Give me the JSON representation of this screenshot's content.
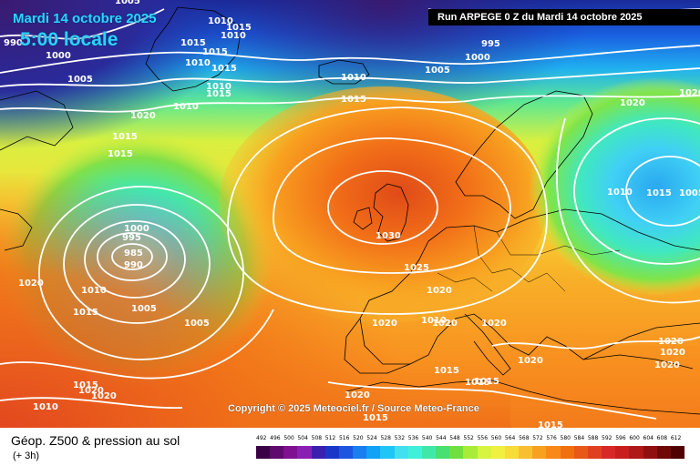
{
  "header": {
    "date": "Mardi 14 octobre 2025",
    "time": "5:00 locale",
    "run": "Run ARPEGE 0 Z du Mardi 14 octobre 2025"
  },
  "copyright": "Copyright © 2025 Meteociel.fr / Source Meteo-France",
  "legend": {
    "title": "Géop. Z500 & pression au sol",
    "subtitle": "(+ 3h)",
    "ticks": [
      "492",
      "496",
      "500",
      "504",
      "508",
      "512",
      "516",
      "520",
      "524",
      "528",
      "532",
      "536",
      "540",
      "544",
      "548",
      "552",
      "556",
      "560",
      "564",
      "568",
      "572",
      "576",
      "580",
      "584",
      "588",
      "592",
      "596",
      "600",
      "604",
      "608",
      "612"
    ],
    "colors": [
      "#3a0045",
      "#5e0a6e",
      "#80108f",
      "#8a1fb3",
      "#3a1fb0",
      "#1a36c8",
      "#1e55e0",
      "#1a7df0",
      "#10a2f5",
      "#1fc6f5",
      "#40e0f0",
      "#40f0d8",
      "#40e8a8",
      "#48e070",
      "#70e040",
      "#a8ec38",
      "#d8f440",
      "#f0f040",
      "#f8dc38",
      "#f8c030",
      "#f8a020",
      "#f88818",
      "#f07010",
      "#e85818",
      "#e04020",
      "#d82828",
      "#c81e1e",
      "#b01818",
      "#901010",
      "#700808",
      "#500000"
    ]
  },
  "isobars": [
    {
      "label": "1005",
      "pos": "top"
    },
    {
      "label": "1010",
      "pos": "top"
    },
    {
      "label": "1015",
      "pos": "top"
    },
    {
      "label": "990",
      "pos": "top"
    },
    {
      "label": "1000",
      "pos": "top"
    },
    {
      "label": "995",
      "pos": "top"
    },
    {
      "label": "1020",
      "pos": "top"
    },
    {
      "label": "1030",
      "pos": "center"
    },
    {
      "label": "1025",
      "pos": "center"
    },
    {
      "label": "985",
      "pos": "low"
    }
  ],
  "map_labels": [
    "1005",
    "1010",
    "1015",
    "990",
    "1000",
    "1005",
    "1015",
    "1010",
    "1015",
    "1015",
    "1010",
    "1005",
    "1010",
    "1015",
    "1020",
    "1010",
    "1015",
    "1015",
    "1010",
    "1015",
    "1005",
    "995",
    "1000",
    "1005",
    "1010",
    "1015",
    "1020",
    "1020",
    "1015",
    "1010",
    "1005",
    "1000",
    "995",
    "985",
    "990",
    "1010",
    "1015",
    "1005",
    "1005",
    "1020",
    "1030",
    "1025",
    "1020",
    "1020",
    "1010",
    "1020",
    "1020",
    "1020",
    "1020",
    "1020",
    "1020",
    "1015",
    "1015",
    "1015",
    "1020",
    "1015",
    "1015",
    "1010",
    "1015",
    "1020",
    "1020"
  ]
}
